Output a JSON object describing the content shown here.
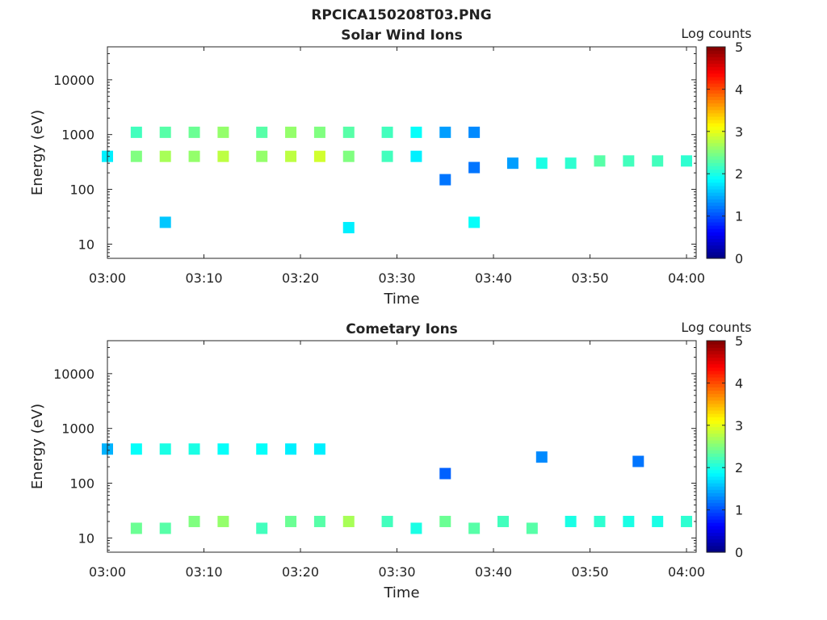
{
  "figure": {
    "title": "RPCICA150208T03.PNG"
  },
  "colorbar": {
    "label": "Log counts",
    "ticks": [
      "0",
      "1",
      "2",
      "3",
      "4",
      "5"
    ],
    "range": [
      0,
      5
    ],
    "colormap": "jet"
  },
  "chart_data": [
    {
      "type": "heatmap",
      "title": "Solar Wind Ions",
      "xlabel": "Time",
      "ylabel": "Energy (eV)",
      "x_ticks": [
        "03:00",
        "03:10",
        "03:20",
        "03:30",
        "03:40",
        "03:50",
        "04:00"
      ],
      "x_range": [
        "03:00",
        "04:01"
      ],
      "y_ticks": [
        "10",
        "100",
        "1000",
        "10000"
      ],
      "y_scale": "log",
      "y_range": [
        5.5,
        40000
      ],
      "colorbar_range": [
        0,
        5
      ],
      "series": [
        {
          "name": "",
          "values": [
            {
              "time": "03:00",
              "energy_eV": 400,
              "log_counts": 1.8
            },
            {
              "time": "03:03",
              "energy_eV": 1100,
              "log_counts": 2.2
            },
            {
              "time": "03:03",
              "energy_eV": 400,
              "log_counts": 2.5
            },
            {
              "time": "03:06",
              "energy_eV": 1100,
              "log_counts": 2.3
            },
            {
              "time": "03:06",
              "energy_eV": 400,
              "log_counts": 2.7
            },
            {
              "time": "03:09",
              "energy_eV": 1100,
              "log_counts": 2.4
            },
            {
              "time": "03:09",
              "energy_eV": 400,
              "log_counts": 2.6
            },
            {
              "time": "03:12",
              "energy_eV": 1100,
              "log_counts": 2.6
            },
            {
              "time": "03:12",
              "energy_eV": 400,
              "log_counts": 2.8
            },
            {
              "time": "03:16",
              "energy_eV": 1100,
              "log_counts": 2.3
            },
            {
              "time": "03:16",
              "energy_eV": 400,
              "log_counts": 2.6
            },
            {
              "time": "03:19",
              "energy_eV": 1100,
              "log_counts": 2.6
            },
            {
              "time": "03:19",
              "energy_eV": 400,
              "log_counts": 2.8
            },
            {
              "time": "03:22",
              "energy_eV": 1100,
              "log_counts": 2.5
            },
            {
              "time": "03:22",
              "energy_eV": 400,
              "log_counts": 2.9
            },
            {
              "time": "03:25",
              "energy_eV": 1100,
              "log_counts": 2.3
            },
            {
              "time": "03:25",
              "energy_eV": 400,
              "log_counts": 2.5
            },
            {
              "time": "03:29",
              "energy_eV": 1100,
              "log_counts": 2.2
            },
            {
              "time": "03:29",
              "energy_eV": 400,
              "log_counts": 2.2
            },
            {
              "time": "03:32",
              "energy_eV": 1100,
              "log_counts": 1.9
            },
            {
              "time": "03:32",
              "energy_eV": 400,
              "log_counts": 1.8
            },
            {
              "time": "03:35",
              "energy_eV": 1100,
              "log_counts": 1.4
            },
            {
              "time": "03:35",
              "energy_eV": 150,
              "log_counts": 1.2
            },
            {
              "time": "03:38",
              "energy_eV": 1100,
              "log_counts": 1.3
            },
            {
              "time": "03:38",
              "energy_eV": 250,
              "log_counts": 1.2
            },
            {
              "time": "03:42",
              "energy_eV": 300,
              "log_counts": 1.4
            },
            {
              "time": "03:45",
              "energy_eV": 300,
              "log_counts": 2.0
            },
            {
              "time": "03:48",
              "energy_eV": 300,
              "log_counts": 2.1
            },
            {
              "time": "03:51",
              "energy_eV": 330,
              "log_counts": 2.3
            },
            {
              "time": "03:54",
              "energy_eV": 330,
              "log_counts": 2.2
            },
            {
              "time": "03:57",
              "energy_eV": 330,
              "log_counts": 2.2
            },
            {
              "time": "04:00",
              "energy_eV": 330,
              "log_counts": 2.1
            },
            {
              "time": "03:06",
              "energy_eV": 25,
              "log_counts": 1.6
            },
            {
              "time": "03:25",
              "energy_eV": 20,
              "log_counts": 1.8
            },
            {
              "time": "03:38",
              "energy_eV": 25,
              "log_counts": 1.9
            }
          ]
        }
      ]
    },
    {
      "type": "heatmap",
      "title": "Cometary Ions",
      "xlabel": "Time",
      "ylabel": "Energy (eV)",
      "x_ticks": [
        "03:00",
        "03:10",
        "03:20",
        "03:30",
        "03:40",
        "03:50",
        "04:00"
      ],
      "x_range": [
        "03:00",
        "04:01"
      ],
      "y_ticks": [
        "10",
        "100",
        "1000",
        "10000"
      ],
      "y_scale": "log",
      "y_range": [
        5.5,
        40000
      ],
      "colorbar_range": [
        0,
        5
      ],
      "series": [
        {
          "name": "",
          "values": [
            {
              "time": "03:00",
              "energy_eV": 420,
              "log_counts": 1.5
            },
            {
              "time": "03:03",
              "energy_eV": 420,
              "log_counts": 1.9
            },
            {
              "time": "03:06",
              "energy_eV": 420,
              "log_counts": 2.0
            },
            {
              "time": "03:09",
              "energy_eV": 420,
              "log_counts": 2.0
            },
            {
              "time": "03:12",
              "energy_eV": 420,
              "log_counts": 1.9
            },
            {
              "time": "03:16",
              "energy_eV": 420,
              "log_counts": 1.9
            },
            {
              "time": "03:19",
              "energy_eV": 420,
              "log_counts": 1.8
            },
            {
              "time": "03:22",
              "energy_eV": 420,
              "log_counts": 1.8
            },
            {
              "time": "03:03",
              "energy_eV": 15,
              "log_counts": 2.4
            },
            {
              "time": "03:06",
              "energy_eV": 15,
              "log_counts": 2.3
            },
            {
              "time": "03:09",
              "energy_eV": 20,
              "log_counts": 2.5
            },
            {
              "time": "03:12",
              "energy_eV": 20,
              "log_counts": 2.6
            },
            {
              "time": "03:16",
              "energy_eV": 15,
              "log_counts": 2.2
            },
            {
              "time": "03:19",
              "energy_eV": 20,
              "log_counts": 2.4
            },
            {
              "time": "03:22",
              "energy_eV": 20,
              "log_counts": 2.3
            },
            {
              "time": "03:25",
              "energy_eV": 20,
              "log_counts": 2.7
            },
            {
              "time": "03:29",
              "energy_eV": 20,
              "log_counts": 2.2
            },
            {
              "time": "03:32",
              "energy_eV": 15,
              "log_counts": 2.0
            },
            {
              "time": "03:35",
              "energy_eV": 20,
              "log_counts": 2.4
            },
            {
              "time": "03:38",
              "energy_eV": 15,
              "log_counts": 2.3
            },
            {
              "time": "03:41",
              "energy_eV": 20,
              "log_counts": 2.2
            },
            {
              "time": "03:44",
              "energy_eV": 15,
              "log_counts": 2.3
            },
            {
              "time": "03:48",
              "energy_eV": 20,
              "log_counts": 2.0
            },
            {
              "time": "03:51",
              "energy_eV": 20,
              "log_counts": 2.1
            },
            {
              "time": "03:54",
              "energy_eV": 20,
              "log_counts": 2.0
            },
            {
              "time": "03:57",
              "energy_eV": 20,
              "log_counts": 2.0
            },
            {
              "time": "04:00",
              "energy_eV": 20,
              "log_counts": 2.1
            },
            {
              "time": "03:35",
              "energy_eV": 150,
              "log_counts": 1.1
            },
            {
              "time": "03:45",
              "energy_eV": 300,
              "log_counts": 1.3
            },
            {
              "time": "03:55",
              "energy_eV": 250,
              "log_counts": 1.2
            }
          ]
        }
      ]
    }
  ]
}
